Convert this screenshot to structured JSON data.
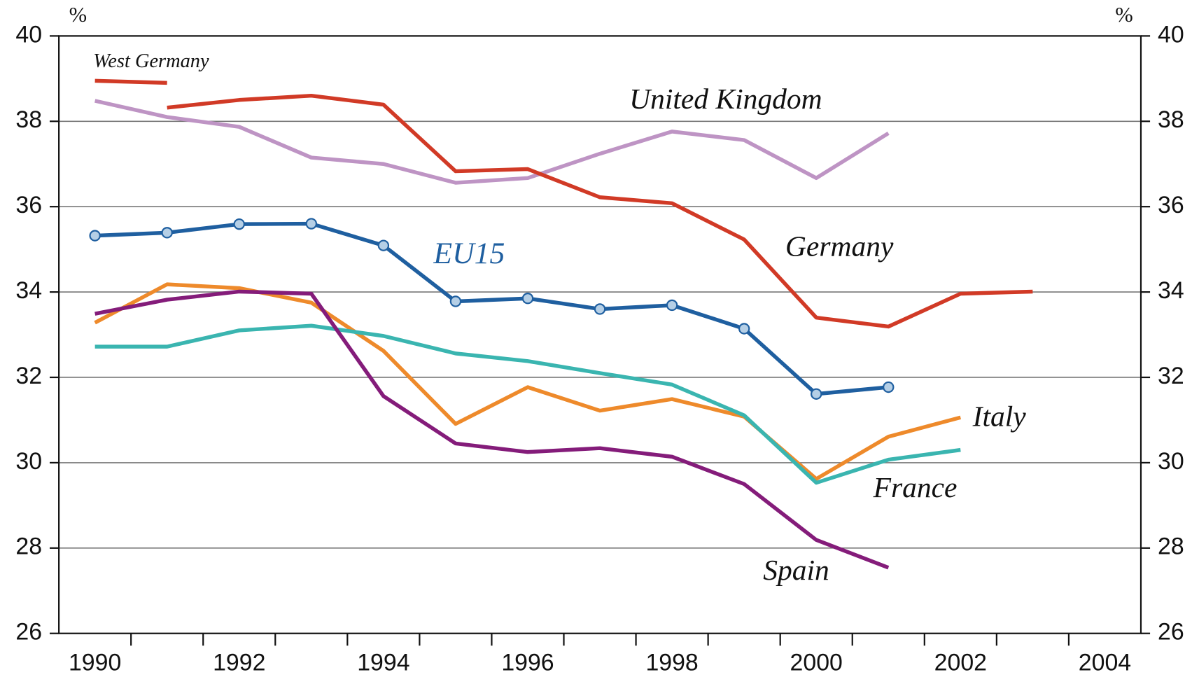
{
  "chart_data": {
    "type": "line",
    "ylabel": "%",
    "y2label": "%",
    "categories": [
      "1990",
      null,
      "1992",
      null,
      "1994",
      null,
      "1996",
      null,
      "1998",
      null,
      "2000",
      null,
      "2002",
      null,
      "2004"
    ],
    "ylim": [
      26,
      40
    ],
    "yticks": [
      26,
      28,
      30,
      32,
      34,
      36,
      38,
      40
    ],
    "y2lim": [
      26,
      40
    ],
    "y2ticks": [
      26,
      28,
      30,
      32,
      34,
      36,
      38,
      40
    ],
    "grid": true,
    "series": [
      {
        "name": "West Germany",
        "color": "#d13a26",
        "values": [
          38.95,
          38.9,
          null,
          null,
          null,
          null,
          null,
          null,
          null,
          null,
          null,
          null,
          null,
          null,
          null
        ]
      },
      {
        "name": "United Kingdom",
        "color": "#be94c4",
        "values": [
          38.48,
          38.1,
          37.87,
          37.15,
          37.0,
          36.56,
          36.67,
          37.24,
          37.76,
          37.56,
          36.67,
          37.72,
          null,
          null,
          null
        ]
      },
      {
        "name": "Germany",
        "color": "#d13a26",
        "values": [
          null,
          38.32,
          38.5,
          38.6,
          38.39,
          36.83,
          36.88,
          36.22,
          36.08,
          35.23,
          33.4,
          33.19,
          33.96,
          34.01,
          null
        ]
      },
      {
        "name": "EU15",
        "color": "#1f5fa0",
        "markers": true,
        "values": [
          35.32,
          35.39,
          35.59,
          35.6,
          35.09,
          33.78,
          33.85,
          33.6,
          33.69,
          33.14,
          31.61,
          31.77,
          null,
          null,
          null
        ]
      },
      {
        "name": "Italy",
        "color": "#ee8a2b",
        "values": [
          33.28,
          34.18,
          34.09,
          33.75,
          32.62,
          30.91,
          31.77,
          31.22,
          31.49,
          31.08,
          29.62,
          30.61,
          31.06,
          null,
          null
        ]
      },
      {
        "name": "France",
        "color": "#3ab5b0",
        "values": [
          32.72,
          32.72,
          33.1,
          33.21,
          32.97,
          32.56,
          32.38,
          32.1,
          31.83,
          31.11,
          29.53,
          30.07,
          30.3,
          null,
          null
        ]
      },
      {
        "name": "Spain",
        "color": "#841c7a",
        "values": [
          33.49,
          33.82,
          34.01,
          33.96,
          31.56,
          30.45,
          30.25,
          30.34,
          30.14,
          29.5,
          28.19,
          27.54,
          null,
          null,
          null
        ]
      }
    ]
  }
}
